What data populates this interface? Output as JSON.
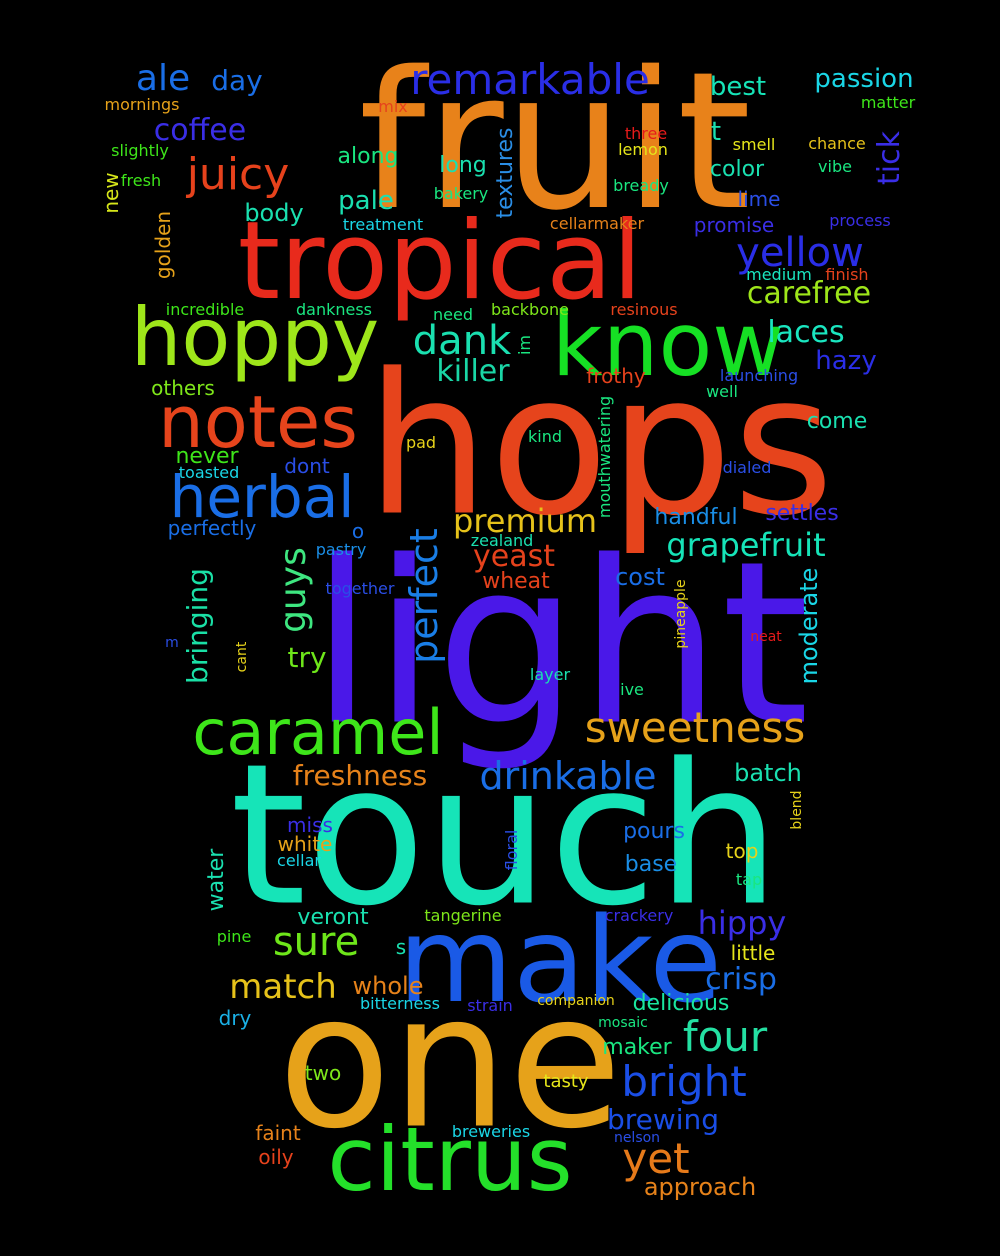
{
  "words": [
    {
      "text": "hops",
      "color": "#e6441c"
    },
    {
      "text": "light",
      "color": "#4a18e8"
    },
    {
      "text": "touch",
      "color": "#16e4b8"
    },
    {
      "text": "fruit",
      "color": "#e8821a"
    },
    {
      "text": "one",
      "color": "#e6a21a"
    },
    {
      "text": "tropical",
      "color": "#e82a1c"
    },
    {
      "text": "make",
      "color": "#1a5ae6"
    },
    {
      "text": "citrus",
      "color": "#24e02a"
    },
    {
      "text": "know",
      "color": "#16e024"
    },
    {
      "text": "hoppy",
      "color": "#9ee61a"
    },
    {
      "text": "notes",
      "color": "#e6441c"
    },
    {
      "text": "herbal",
      "color": "#1a6ee6"
    },
    {
      "text": "caramel",
      "color": "#3ee61a"
    },
    {
      "text": "remarkable",
      "color": "#2a2ee6"
    },
    {
      "text": "juicy",
      "color": "#e6421c"
    },
    {
      "text": "sweetness",
      "color": "#e6a21a"
    },
    {
      "text": "drinkable",
      "color": "#1a6ee6"
    },
    {
      "text": "yellow",
      "color": "#2a2ee6"
    },
    {
      "text": "grapefruit",
      "color": "#16e4b8"
    },
    {
      "text": "bright",
      "color": "#1a4ee6"
    },
    {
      "text": "four",
      "color": "#24e0a2"
    },
    {
      "text": "yet",
      "color": "#e67a1a"
    },
    {
      "text": "dank",
      "color": "#1ae0b0"
    },
    {
      "text": "perfect",
      "color": "#1a7ee6"
    },
    {
      "text": "guys",
      "color": "#3ee680"
    },
    {
      "text": "ale",
      "color": "#1a6ee6"
    },
    {
      "text": "premium",
      "color": "#e6c21a"
    },
    {
      "text": "sure",
      "color": "#6ee61a"
    },
    {
      "text": "match",
      "color": "#e6c21a"
    },
    {
      "text": "freshness",
      "color": "#e6821a"
    },
    {
      "text": "hippy",
      "color": "#3a2ee6"
    },
    {
      "text": "crisp",
      "color": "#1a6ee6"
    },
    {
      "text": "killer",
      "color": "#1ad6a6"
    },
    {
      "text": "laces",
      "color": "#1ae6c0"
    },
    {
      "text": "carefree",
      "color": "#9ee61a"
    },
    {
      "text": "coffee",
      "color": "#3a2ee6"
    },
    {
      "text": "yeast",
      "color": "#e6421c"
    },
    {
      "text": "brewing",
      "color": "#1a4ee6"
    },
    {
      "text": "bringing",
      "color": "#1ae0a6"
    },
    {
      "text": "tick",
      "color": "#3a2ee6"
    },
    {
      "text": "passion",
      "color": "#1ad6e6"
    },
    {
      "text": "best",
      "color": "#16e4b8"
    },
    {
      "text": "day",
      "color": "#1a6ee6"
    },
    {
      "text": "whole",
      "color": "#e6821a"
    },
    {
      "text": "moderate",
      "color": "#1ad6e6"
    },
    {
      "text": "batch",
      "color": "#1ae0b0"
    },
    {
      "text": "approach",
      "color": "#e6821a"
    },
    {
      "text": "hazy",
      "color": "#2a2ee6"
    },
    {
      "text": "pale",
      "color": "#1ae0b0"
    },
    {
      "text": "body",
      "color": "#1ae0b0"
    },
    {
      "text": "try",
      "color": "#6ee61a"
    },
    {
      "text": "textures",
      "color": "#2a8ee6"
    },
    {
      "text": "water",
      "color": "#1ae0b0"
    },
    {
      "text": "t",
      "color": "#1ae0b0"
    },
    {
      "text": "pours",
      "color": "#1a6ee6"
    },
    {
      "text": "cost",
      "color": "#1a6ee6"
    },
    {
      "text": "along",
      "color": "#1ae680"
    },
    {
      "text": "long",
      "color": "#1ae0b0"
    },
    {
      "text": "come",
      "color": "#1ae0b0"
    },
    {
      "text": "color",
      "color": "#1ae0b0"
    },
    {
      "text": "new",
      "color": "#d6e61a"
    },
    {
      "text": "never",
      "color": "#3ee61a"
    },
    {
      "text": "golden",
      "color": "#e6a21a"
    },
    {
      "text": "others",
      "color": "#7ee61a"
    },
    {
      "text": "settles",
      "color": "#3a2ee6"
    },
    {
      "text": "handful",
      "color": "#1a8ee6"
    },
    {
      "text": "base",
      "color": "#1a8ee6"
    },
    {
      "text": "veront",
      "color": "#1ae0b0"
    },
    {
      "text": "delicious",
      "color": "#1ae6a0"
    },
    {
      "text": "maker",
      "color": "#1ae680"
    },
    {
      "text": "o",
      "color": "#1a6ee6"
    },
    {
      "text": "wheat",
      "color": "#e6421c"
    },
    {
      "text": "frothy",
      "color": "#e6421c"
    },
    {
      "text": "dont",
      "color": "#2a4ee6"
    },
    {
      "text": "perfectly",
      "color": "#1a6ee6"
    },
    {
      "text": "promise",
      "color": "#3a2ee6"
    },
    {
      "text": "lime",
      "color": "#2a4ee6"
    },
    {
      "text": "miss",
      "color": "#3a2ee6"
    },
    {
      "text": "white",
      "color": "#e6a21a"
    },
    {
      "text": "top",
      "color": "#e6d21a"
    },
    {
      "text": "little",
      "color": "#e6e61a"
    },
    {
      "text": "dry",
      "color": "#1ab0e6"
    },
    {
      "text": "two",
      "color": "#7ee61a"
    },
    {
      "text": "faint",
      "color": "#e6821a"
    },
    {
      "text": "oily",
      "color": "#e6421c"
    },
    {
      "text": "tasty",
      "color": "#e6e61a"
    },
    {
      "text": "s",
      "color": "#1ae0b0"
    },
    {
      "text": "mix",
      "color": "#e6421c"
    },
    {
      "text": "three",
      "color": "#e61a1a"
    },
    {
      "text": "lemon",
      "color": "#e6e61a"
    },
    {
      "text": "smell",
      "color": "#e6e61a"
    },
    {
      "text": "chance",
      "color": "#e6c21a"
    },
    {
      "text": "matter",
      "color": "#3ee61a"
    },
    {
      "text": "vibe",
      "color": "#1ae680"
    },
    {
      "text": "process",
      "color": "#3a2ee6"
    },
    {
      "text": "mornings",
      "color": "#e6a21a"
    },
    {
      "text": "slightly",
      "color": "#3ee61a"
    },
    {
      "text": "fresh",
      "color": "#3ee61a"
    },
    {
      "text": "bakery",
      "color": "#1ae680"
    },
    {
      "text": "bready",
      "color": "#1ae680"
    },
    {
      "text": "treatment",
      "color": "#1ad6e6"
    },
    {
      "text": "cellarmaker",
      "color": "#e6821a"
    },
    {
      "text": "medium",
      "color": "#1ae6c0"
    },
    {
      "text": "finish",
      "color": "#e6421c"
    },
    {
      "text": "incredible",
      "color": "#3ee61a"
    },
    {
      "text": "dankness",
      "color": "#1ae680"
    },
    {
      "text": "backbone",
      "color": "#7ee61a"
    },
    {
      "text": "resinous",
      "color": "#e6421c"
    },
    {
      "text": "need",
      "color": "#1ae680"
    },
    {
      "text": "im",
      "color": "#1ae680"
    },
    {
      "text": "launching",
      "color": "#2a4ee6"
    },
    {
      "text": "well",
      "color": "#1ae680"
    },
    {
      "text": "kind",
      "color": "#1ae680"
    },
    {
      "text": "pad",
      "color": "#e6d21a"
    },
    {
      "text": "mouthwatering",
      "color": "#1ae680"
    },
    {
      "text": "toasted",
      "color": "#1ad6e6"
    },
    {
      "text": "dialed",
      "color": "#2a4ee6"
    },
    {
      "text": "zealand",
      "color": "#1ae0b0"
    },
    {
      "text": "pastry",
      "color": "#1a8ee6"
    },
    {
      "text": "together",
      "color": "#2a4ee6"
    },
    {
      "text": "pineapple",
      "color": "#e6d21a"
    },
    {
      "text": "m",
      "color": "#2a4ee6"
    },
    {
      "text": "cant",
      "color": "#e6d21a"
    },
    {
      "text": "neat",
      "color": "#e61a1a"
    },
    {
      "text": "layer",
      "color": "#1ae0b0"
    },
    {
      "text": "ive",
      "color": "#1ae680"
    },
    {
      "text": "cellar",
      "color": "#1ad6e6"
    },
    {
      "text": "floral",
      "color": "#2a4ee6"
    },
    {
      "text": "blend",
      "color": "#e6d21a"
    },
    {
      "text": "tap",
      "color": "#1ae680"
    },
    {
      "text": "tangerine",
      "color": "#7ee61a"
    },
    {
      "text": "crackery",
      "color": "#3a2ee6"
    },
    {
      "text": "pine",
      "color": "#3ee61a"
    },
    {
      "text": "bitterness",
      "color": "#1ad6e6"
    },
    {
      "text": "strain",
      "color": "#3a2ee6"
    },
    {
      "text": "companion",
      "color": "#e6d21a"
    },
    {
      "text": "mosaic",
      "color": "#1ae680"
    },
    {
      "text": "breweries",
      "color": "#1ad6e6"
    },
    {
      "text": "nelson",
      "color": "#2a4ee6"
    }
  ]
}
